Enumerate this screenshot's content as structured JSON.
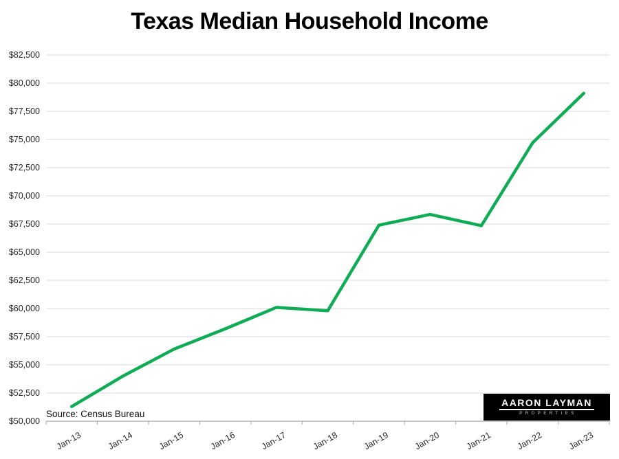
{
  "title": "Texas Median Household Income",
  "source_note": "Source: Census Bureau",
  "logo": {
    "line1": "AARON LAYMAN",
    "line2": "PROPERTIES"
  },
  "chart_data": {
    "type": "line",
    "title": "Texas Median Household Income",
    "series_name": "Texas median household income",
    "x": [
      "Jan-13",
      "Jan-14",
      "Jan-15",
      "Jan-16",
      "Jan-17",
      "Jan-18",
      "Jan-19",
      "Jan-20",
      "Jan-21",
      "Jan-22",
      "Jan-23"
    ],
    "values": [
      51300,
      54000,
      56400,
      58200,
      60100,
      59800,
      67400,
      68350,
      67350,
      74700,
      79100
    ],
    "ylim": [
      50000,
      82500
    ],
    "ytick_step": 2500,
    "ytick_labels": [
      "$82,500",
      "$80,000",
      "$77,500",
      "$75,000",
      "$72,500",
      "$70,000",
      "$67,500",
      "$65,000",
      "$62,500",
      "$60,000",
      "$57,500",
      "$55,000",
      "$52,500",
      "$50,000"
    ],
    "xlabel": "",
    "ylabel": "",
    "grid": "horizontal",
    "legend": "none",
    "line_color": "#0fac56",
    "grid_color": "#d9d9d9",
    "axis_color": "#a6a6a6",
    "label_color": "#262626",
    "title_color": "#000000"
  }
}
